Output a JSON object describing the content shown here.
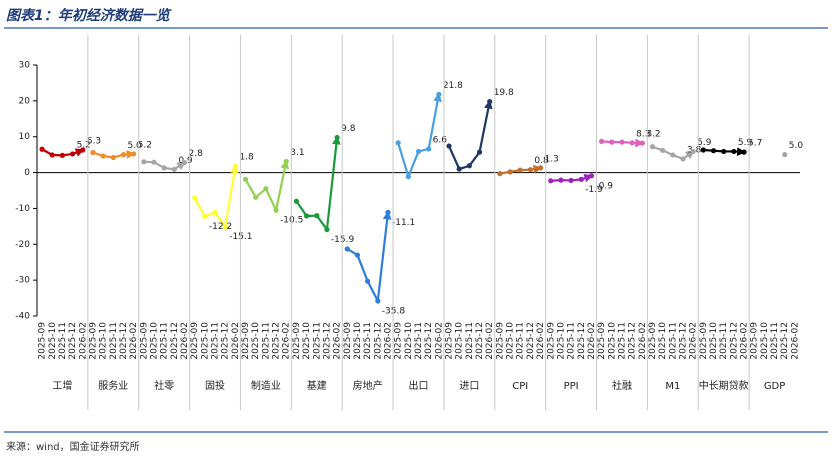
{
  "chart_data": {
    "type": "line",
    "title": "图表1：年初经济数据一览",
    "source": "来源：wind，国金证券研究所",
    "categories": [
      "2025-09",
      "2025-10",
      "2025-11",
      "2025-12",
      "2026-02"
    ],
    "ylim": [
      -40,
      30
    ],
    "yticks": [
      -40,
      -30,
      -20,
      -10,
      0,
      10,
      20,
      30
    ],
    "series": [
      {
        "name": "工增",
        "color": "#c00000",
        "values": [
          6.5,
          4.9,
          4.8,
          5.2,
          6.3
        ],
        "value_labels": [
          null,
          null,
          null,
          "5.2",
          "6.3"
        ]
      },
      {
        "name": "服务业",
        "color": "#f08c28",
        "values": [
          5.6,
          4.6,
          4.2,
          5.0,
          5.2
        ],
        "value_labels": [
          null,
          null,
          null,
          "5.0",
          "5.2"
        ]
      },
      {
        "name": "社零",
        "color": "#a6a6a6",
        "values": [
          3.0,
          2.9,
          1.3,
          0.9,
          2.8
        ],
        "value_labels": [
          null,
          null,
          null,
          "0.9",
          "2.8"
        ]
      },
      {
        "name": "固投",
        "color": "#ffff33",
        "values": [
          -7.1,
          -12.2,
          -11.1,
          -15.1,
          1.8
        ],
        "value_labels": [
          null,
          "-12.2",
          null,
          "-15.1",
          "1.8"
        ]
      },
      {
        "name": "制造业",
        "color": "#92d050",
        "values": [
          -1.9,
          -6.9,
          -4.5,
          -10.5,
          3.1
        ],
        "value_labels": [
          null,
          null,
          null,
          "-10.5",
          "3.1"
        ]
      },
      {
        "name": "基建",
        "color": "#1a9a3a",
        "values": [
          -8.0,
          -12.1,
          -12.0,
          -15.9,
          9.8
        ],
        "value_labels": [
          null,
          null,
          null,
          "-15.9",
          "9.8"
        ]
      },
      {
        "name": "房地产",
        "color": "#2e7dd6",
        "values": [
          -21.3,
          -23.0,
          -30.3,
          -35.8,
          -11.1
        ],
        "value_labels": [
          null,
          null,
          null,
          "-35.8",
          "-11.1"
        ]
      },
      {
        "name": "出口",
        "color": "#4a9fe0",
        "values": [
          8.3,
          -1.1,
          5.9,
          6.6,
          21.8
        ],
        "value_labels": [
          null,
          null,
          null,
          "6.6",
          "21.8"
        ]
      },
      {
        "name": "进口",
        "color": "#1f3864",
        "values": [
          7.4,
          1.0,
          1.9,
          5.7,
          19.8
        ],
        "value_labels": [
          null,
          null,
          null,
          null,
          "19.8"
        ]
      },
      {
        "name": "CPI",
        "color": "#c0702a",
        "values": [
          -0.3,
          0.2,
          0.7,
          0.8,
          1.3
        ],
        "value_labels": [
          null,
          null,
          null,
          "0.8",
          "1.3"
        ]
      },
      {
        "name": "PPI",
        "color": "#a020c0",
        "values": [
          -2.3,
          -2.1,
          -2.2,
          -1.9,
          -0.9
        ],
        "value_labels": [
          null,
          null,
          null,
          "-1.9",
          "-0.9"
        ]
      },
      {
        "name": "社融",
        "color": "#e060c0",
        "values": [
          8.7,
          8.5,
          8.5,
          8.3,
          8.2
        ],
        "value_labels": [
          null,
          null,
          null,
          "8.3",
          "8.2"
        ]
      },
      {
        "name": "M1",
        "color": "#a6a6a6",
        "values": [
          7.2,
          6.2,
          4.9,
          3.8,
          5.9
        ],
        "value_labels": [
          null,
          null,
          null,
          "3.8",
          "5.9"
        ]
      },
      {
        "name": "中长期贷款",
        "color": "#000000",
        "values": [
          6.3,
          6.1,
          5.9,
          5.9,
          5.7
        ],
        "value_labels": [
          null,
          null,
          null,
          "5.9",
          "5.7"
        ]
      },
      {
        "name": "GDP",
        "color": "#a6a6a6",
        "values": [
          null,
          null,
          null,
          5.0,
          null
        ],
        "value_labels": [
          null,
          null,
          null,
          "5.0",
          null
        ]
      }
    ]
  }
}
